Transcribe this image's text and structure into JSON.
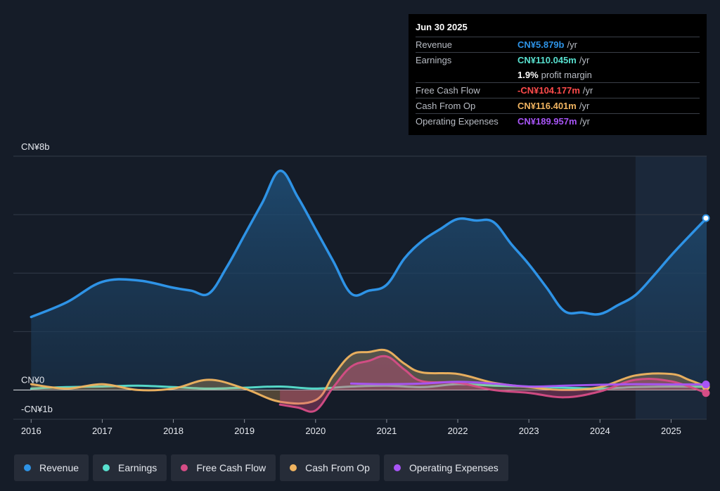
{
  "colors": {
    "revenue": "#2e93e6",
    "earnings": "#58e0cf",
    "fcf": "#d64d86",
    "cfo": "#f0b460",
    "opex": "#a855f7"
  },
  "tooltip": {
    "date": "Jun 30 2025",
    "rows": [
      {
        "label": "Revenue",
        "value": "CN¥5.879b",
        "unit": "/yr",
        "color": "#2e93e6"
      },
      {
        "label": "Earnings",
        "value": "CN¥110.045m",
        "unit": "/yr",
        "color": "#58e0cf"
      },
      {
        "label": "",
        "value": "1.9%",
        "unit": "profit margin",
        "color": "#ffffff"
      },
      {
        "label": "Free Cash Flow",
        "value": "-CN¥104.177m",
        "unit": "/yr",
        "color": "#ff4b4b"
      },
      {
        "label": "Cash From Op",
        "value": "CN¥116.401m",
        "unit": "/yr",
        "color": "#f0b460"
      },
      {
        "label": "Operating Expenses",
        "value": "CN¥189.957m",
        "unit": "/yr",
        "color": "#a855f7"
      }
    ]
  },
  "legend": [
    {
      "label": "Revenue",
      "color": "#2e93e6"
    },
    {
      "label": "Earnings",
      "color": "#58e0cf"
    },
    {
      "label": "Free Cash Flow",
      "color": "#d64d86"
    },
    {
      "label": "Cash From Op",
      "color": "#f0b460"
    },
    {
      "label": "Operating Expenses",
      "color": "#a855f7"
    }
  ],
  "chart_data": {
    "type": "area",
    "y_unit": "CN¥ billions",
    "ylim": [
      -1,
      8
    ],
    "y_tick_labels": [
      {
        "value": 8,
        "label": "CN¥8b"
      },
      {
        "value": 0,
        "label": "CN¥0"
      },
      {
        "value": -1,
        "label": "-CN¥1b"
      }
    ],
    "gridlines": [
      8,
      6,
      4,
      2,
      0
    ],
    "xlim": [
      2015.75,
      2025.5
    ],
    "x_ticks": [
      "2016",
      "2017",
      "2018",
      "2019",
      "2020",
      "2021",
      "2022",
      "2023",
      "2024",
      "2025"
    ],
    "highlight_start": 2024.5,
    "series": [
      {
        "name": "Revenue",
        "key": "revenue",
        "fill": true,
        "x": [
          2016.0,
          2016.5,
          2017.0,
          2017.5,
          2018.0,
          2018.25,
          2018.5,
          2018.75,
          2019.0,
          2019.25,
          2019.5,
          2019.75,
          2020.0,
          2020.25,
          2020.5,
          2020.75,
          2021.0,
          2021.25,
          2021.5,
          2021.75,
          2022.0,
          2022.25,
          2022.5,
          2022.75,
          2023.0,
          2023.25,
          2023.5,
          2023.75,
          2024.0,
          2024.25,
          2024.5,
          2024.75,
          2025.0,
          2025.25,
          2025.5
        ],
        "y": [
          2.5,
          3.0,
          3.7,
          3.75,
          3.5,
          3.4,
          3.3,
          4.2,
          5.3,
          6.4,
          7.5,
          6.6,
          5.5,
          4.4,
          3.3,
          3.4,
          3.6,
          4.5,
          5.1,
          5.5,
          5.85,
          5.8,
          5.75,
          5.0,
          4.3,
          3.5,
          2.7,
          2.65,
          2.6,
          2.9,
          3.25,
          3.9,
          4.6,
          5.25,
          5.879
        ]
      },
      {
        "name": "Earnings",
        "key": "earnings",
        "fill": false,
        "x": [
          2016.0,
          2016.5,
          2017.0,
          2017.5,
          2018.0,
          2018.5,
          2019.0,
          2019.5,
          2020.0,
          2020.5,
          2021.0,
          2021.5,
          2022.0,
          2022.5,
          2023.0,
          2023.5,
          2024.0,
          2024.5,
          2025.0,
          2025.5
        ],
        "y": [
          0.05,
          0.1,
          0.12,
          0.15,
          0.1,
          0.05,
          0.08,
          0.12,
          0.05,
          0.12,
          0.15,
          0.1,
          0.2,
          0.15,
          0.12,
          0.08,
          0.05,
          0.1,
          0.12,
          0.11
        ]
      },
      {
        "name": "Free Cash Flow",
        "key": "fcf",
        "fill": true,
        "x": [
          2019.5,
          2019.75,
          2020.0,
          2020.25,
          2020.5,
          2020.75,
          2021.0,
          2021.25,
          2021.5,
          2022.0,
          2022.5,
          2023.0,
          2023.5,
          2024.0,
          2024.5,
          2025.0,
          2025.5
        ],
        "y": [
          -0.5,
          -0.6,
          -0.7,
          0.1,
          0.8,
          1.0,
          1.15,
          0.7,
          0.3,
          0.25,
          0.0,
          -0.1,
          -0.25,
          -0.05,
          0.35,
          0.3,
          -0.104
        ]
      },
      {
        "name": "Cash From Op",
        "key": "cfo",
        "fill": true,
        "x": [
          2016.0,
          2016.5,
          2017.0,
          2017.5,
          2018.0,
          2018.5,
          2019.0,
          2019.5,
          2020.0,
          2020.25,
          2020.5,
          2020.75,
          2021.0,
          2021.25,
          2021.5,
          2022.0,
          2022.5,
          2023.0,
          2023.5,
          2024.0,
          2024.5,
          2025.0,
          2025.25,
          2025.5
        ],
        "y": [
          0.2,
          0.05,
          0.2,
          0.0,
          0.05,
          0.35,
          0.05,
          -0.4,
          -0.35,
          0.5,
          1.2,
          1.3,
          1.35,
          0.9,
          0.6,
          0.55,
          0.25,
          0.1,
          0.0,
          0.1,
          0.5,
          0.55,
          0.35,
          0.116
        ]
      },
      {
        "name": "Operating Expenses",
        "key": "opex",
        "fill": false,
        "x": [
          2020.5,
          2021.0,
          2021.5,
          2022.0,
          2022.5,
          2023.0,
          2023.5,
          2024.0,
          2024.5,
          2025.0,
          2025.5
        ],
        "y": [
          0.22,
          0.2,
          0.22,
          0.28,
          0.22,
          0.12,
          0.15,
          0.18,
          0.2,
          0.19,
          0.19
        ]
      }
    ]
  }
}
